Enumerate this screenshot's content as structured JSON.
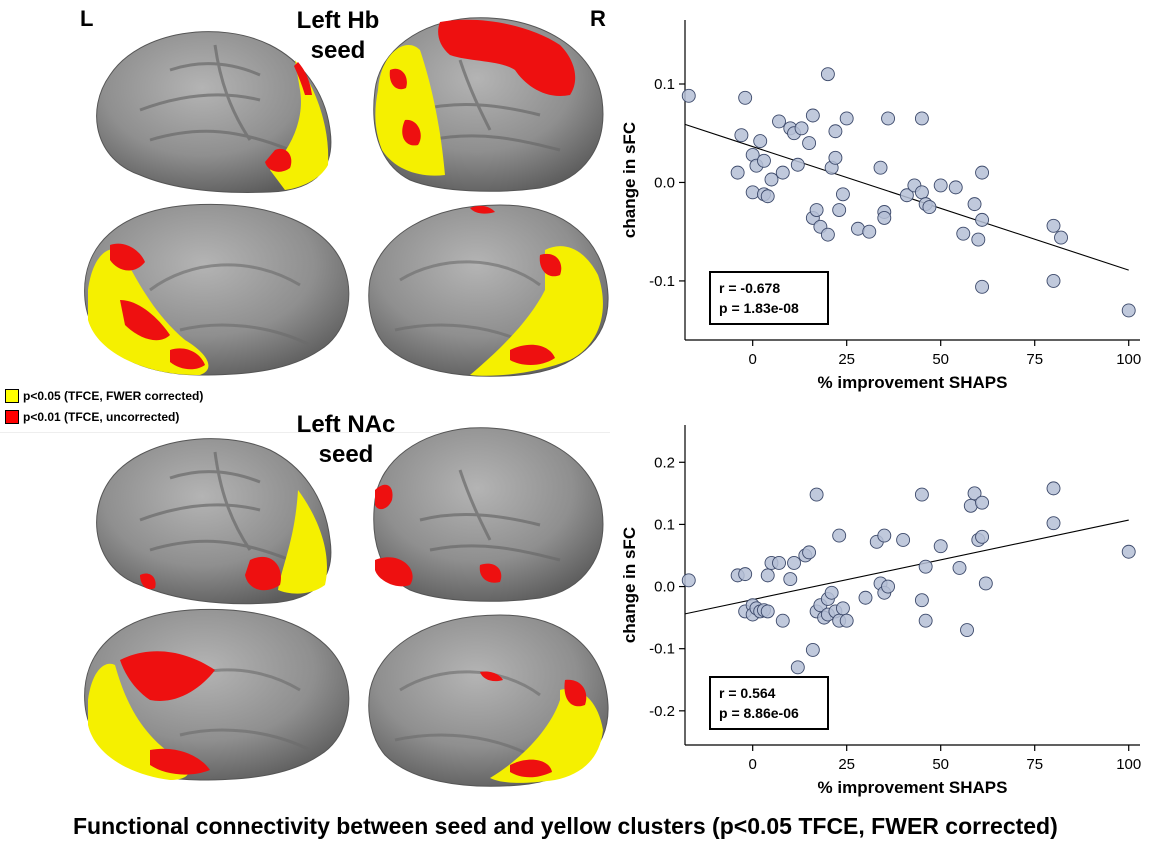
{
  "labels": {
    "left": "L",
    "right": "R"
  },
  "seeds": [
    {
      "title_line1": "Left Hb",
      "title_line2": "seed"
    },
    {
      "title_line1": "Left NAc",
      "title_line2": "seed"
    }
  ],
  "legend": [
    {
      "label": "p<0.05 (TFCE, FWER corrected)",
      "color": "#ffff00"
    },
    {
      "label": "p<0.01 (TFCE, uncorrected)",
      "color": "#ff0000"
    }
  ],
  "caption": "Functional connectivity between seed and yellow clusters (p<0.05 TFCE, FWER corrected)",
  "colors": {
    "brain": "#8c8c8c",
    "yellow": "#f5f000",
    "red": "#ee1010",
    "point_fill": "#b5bfd6",
    "point_edge": "#3d4a6b"
  },
  "chart_data": [
    {
      "type": "scatter",
      "xlabel": "% improvement SHAPS",
      "ylabel": "change in sFC",
      "xlim": [
        -18,
        103
      ],
      "ylim": [
        -0.16,
        0.165
      ],
      "xticks": [
        0,
        25,
        50,
        75,
        100
      ],
      "yticks": [
        -0.1,
        0.0,
        0.1
      ],
      "ytick_labels": [
        "-0.1",
        "0.0",
        "0.1"
      ],
      "fit_line": {
        "x": [
          -18,
          100
        ],
        "y": [
          0.059,
          -0.089
        ]
      },
      "stats": {
        "r": "r = -0.678",
        "p": "p = 1.83e-08"
      },
      "points": [
        [
          -17,
          0.088
        ],
        [
          -2,
          0.086
        ],
        [
          -3,
          0.048
        ],
        [
          0,
          0.028
        ],
        [
          1,
          0.017
        ],
        [
          2,
          0.042
        ],
        [
          3,
          0.022
        ],
        [
          -4,
          0.01
        ],
        [
          0,
          -0.01
        ],
        [
          3,
          -0.012
        ],
        [
          4,
          -0.014
        ],
        [
          5,
          0.003
        ],
        [
          7,
          0.062
        ],
        [
          8,
          0.01
        ],
        [
          10,
          0.055
        ],
        [
          11,
          0.05
        ],
        [
          12,
          0.018
        ],
        [
          13,
          0.055
        ],
        [
          15,
          0.04
        ],
        [
          16,
          0.068
        ],
        [
          16,
          -0.036
        ],
        [
          17,
          -0.028
        ],
        [
          18,
          -0.045
        ],
        [
          20,
          -0.053
        ],
        [
          20,
          0.11
        ],
        [
          21,
          0.015
        ],
        [
          22,
          0.052
        ],
        [
          22,
          0.025
        ],
        [
          24,
          -0.012
        ],
        [
          23,
          -0.028
        ],
        [
          25,
          0.065
        ],
        [
          28,
          -0.047
        ],
        [
          31,
          -0.05
        ],
        [
          34,
          0.015
        ],
        [
          35,
          -0.03
        ],
        [
          35,
          -0.036
        ],
        [
          36,
          0.065
        ],
        [
          41,
          -0.013
        ],
        [
          43,
          -0.003
        ],
        [
          45,
          -0.01
        ],
        [
          45,
          0.065
        ],
        [
          46,
          -0.022
        ],
        [
          47,
          -0.025
        ],
        [
          50,
          -0.003
        ],
        [
          54,
          -0.005
        ],
        [
          56,
          -0.052
        ],
        [
          59,
          -0.022
        ],
        [
          60,
          -0.058
        ],
        [
          61,
          -0.038
        ],
        [
          61,
          0.01
        ],
        [
          61,
          -0.106
        ],
        [
          80,
          -0.044
        ],
        [
          80,
          -0.1
        ],
        [
          82,
          -0.056
        ],
        [
          100,
          -0.13
        ]
      ]
    },
    {
      "type": "scatter",
      "xlabel": "% improvement SHAPS",
      "ylabel": "change in sFC",
      "xlim": [
        -18,
        103
      ],
      "ylim": [
        -0.255,
        0.26
      ],
      "xticks": [
        0,
        25,
        50,
        75,
        100
      ],
      "yticks": [
        -0.2,
        -0.1,
        0.0,
        0.1,
        0.2
      ],
      "ytick_labels": [
        "-0.2",
        "-0.1",
        "0.0",
        "0.1",
        "0.2"
      ],
      "fit_line": {
        "x": [
          -18,
          100
        ],
        "y": [
          -0.044,
          0.107
        ]
      },
      "stats": {
        "r": "r = 0.564",
        "p": "p = 8.86e-06"
      },
      "points": [
        [
          -17,
          0.01
        ],
        [
          -4,
          0.018
        ],
        [
          -2,
          0.02
        ],
        [
          -2,
          -0.04
        ],
        [
          0,
          -0.03
        ],
        [
          0,
          -0.045
        ],
        [
          1,
          -0.035
        ],
        [
          2,
          -0.04
        ],
        [
          3,
          -0.038
        ],
        [
          4,
          0.018
        ],
        [
          4,
          -0.04
        ],
        [
          5,
          0.038
        ],
        [
          7,
          0.038
        ],
        [
          8,
          -0.055
        ],
        [
          10,
          0.012
        ],
        [
          11,
          0.038
        ],
        [
          12,
          -0.13
        ],
        [
          14,
          0.05
        ],
        [
          15,
          0.055
        ],
        [
          16,
          -0.102
        ],
        [
          17,
          0.148
        ],
        [
          17,
          -0.04
        ],
        [
          18,
          -0.03
        ],
        [
          19,
          -0.05
        ],
        [
          20,
          -0.02
        ],
        [
          20,
          -0.045
        ],
        [
          21,
          -0.01
        ],
        [
          22,
          -0.04
        ],
        [
          23,
          -0.055
        ],
        [
          23,
          0.082
        ],
        [
          24,
          -0.035
        ],
        [
          25,
          -0.055
        ],
        [
          30,
          -0.018
        ],
        [
          33,
          0.072
        ],
        [
          34,
          0.005
        ],
        [
          35,
          0.082
        ],
        [
          35,
          -0.01
        ],
        [
          36,
          0.0
        ],
        [
          40,
          0.075
        ],
        [
          45,
          -0.022
        ],
        [
          45,
          0.148
        ],
        [
          46,
          0.032
        ],
        [
          46,
          -0.055
        ],
        [
          50,
          0.065
        ],
        [
          55,
          0.03
        ],
        [
          57,
          -0.07
        ],
        [
          58,
          0.13
        ],
        [
          59,
          0.15
        ],
        [
          60,
          0.075
        ],
        [
          61,
          0.08
        ],
        [
          61,
          0.135
        ],
        [
          62,
          0.005
        ],
        [
          80,
          0.158
        ],
        [
          80,
          0.102
        ],
        [
          100,
          0.056
        ]
      ]
    }
  ]
}
